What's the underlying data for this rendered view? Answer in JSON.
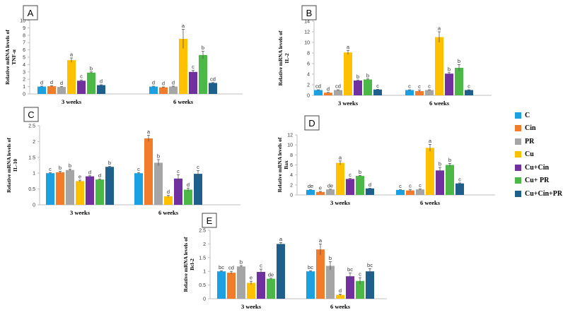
{
  "colors": [
    "#1ba1e2",
    "#f07c2c",
    "#a5a5a5",
    "#ffc000",
    "#7030a0",
    "#4cb848",
    "#1f5f8b"
  ],
  "legend": [
    "C",
    "Cin",
    "PR",
    "Cu",
    "Cu+Cin",
    "Cu+ PR",
    "Cu+Cin+PR"
  ],
  "chart_data": [
    {
      "type": "bar",
      "panel_label": "A",
      "ylabel": "Relative mRNA levels of TNF-α",
      "categories": [
        "3 weeks",
        "6 weeks"
      ],
      "ylim": [
        0,
        10
      ],
      "yticks": [
        0,
        1,
        2,
        3,
        4,
        5,
        6,
        7,
        8,
        9,
        10
      ],
      "series": [
        {
          "name": "C",
          "values": [
            1.0,
            1.0
          ],
          "errors": [
            0.05,
            0.05
          ],
          "letters": [
            "d",
            "d"
          ]
        },
        {
          "name": "Cin",
          "values": [
            1.05,
            0.9
          ],
          "errors": [
            0.05,
            0.05
          ],
          "letters": [
            "d",
            "d"
          ]
        },
        {
          "name": "PR",
          "values": [
            0.95,
            1.0
          ],
          "errors": [
            0.05,
            0.05
          ],
          "letters": [
            "d",
            "d"
          ]
        },
        {
          "name": "Cu",
          "values": [
            4.6,
            7.5
          ],
          "errors": [
            0.3,
            1.3
          ],
          "letters": [
            "a",
            "a"
          ]
        },
        {
          "name": "Cu+Cin",
          "values": [
            1.8,
            3.0
          ],
          "errors": [
            0.1,
            0.2
          ],
          "letters": [
            "c",
            "c"
          ]
        },
        {
          "name": "Cu+ PR",
          "values": [
            2.9,
            5.3
          ],
          "errors": [
            0.1,
            0.5
          ],
          "letters": [
            "b",
            "b"
          ]
        },
        {
          "name": "Cu+Cin+PR",
          "values": [
            1.2,
            1.5
          ],
          "errors": [
            0.05,
            0.05
          ],
          "letters": [
            "d",
            "cd"
          ]
        }
      ]
    },
    {
      "type": "bar",
      "panel_label": "B",
      "ylabel": "Relative mRNA levels of IL-2",
      "categories": [
        "3 weeks",
        "6 weeks"
      ],
      "ylim": [
        0,
        14
      ],
      "yticks": [
        0,
        2,
        4,
        6,
        8,
        10,
        12,
        14
      ],
      "series": [
        {
          "name": "C",
          "values": [
            1.0,
            1.0
          ],
          "errors": [
            0.05,
            0.05
          ],
          "letters": [
            "cd",
            "c"
          ]
        },
        {
          "name": "Cin",
          "values": [
            0.5,
            0.8
          ],
          "errors": [
            0.05,
            0.2
          ],
          "letters": [
            "d",
            "c"
          ]
        },
        {
          "name": "PR",
          "values": [
            1.0,
            1.0
          ],
          "errors": [
            0.05,
            0.05
          ],
          "letters": [
            "cd",
            "c"
          ]
        },
        {
          "name": "Cu",
          "values": [
            8.1,
            11.0
          ],
          "errors": [
            0.4,
            1.0
          ],
          "letters": [
            "a",
            "a"
          ]
        },
        {
          "name": "Cu+Cin",
          "values": [
            2.8,
            4.1
          ],
          "errors": [
            0.1,
            0.2
          ],
          "letters": [
            "b",
            "b"
          ]
        },
        {
          "name": "Cu+ PR",
          "values": [
            3.0,
            5.2
          ],
          "errors": [
            0.1,
            0.6
          ],
          "letters": [
            "b",
            "b"
          ]
        },
        {
          "name": "Cu+Cin+PR",
          "values": [
            1.1,
            1.0
          ],
          "errors": [
            0.05,
            0.05
          ],
          "letters": [
            "c",
            "c"
          ]
        }
      ]
    },
    {
      "type": "bar",
      "panel_label": "C",
      "ylabel": "Relative mRNA levels of IL-10",
      "categories": [
        "3 weeks",
        "6 weeks"
      ],
      "ylim": [
        0,
        2.5
      ],
      "yticks": [
        0,
        0.5,
        1,
        1.5,
        2,
        2.5
      ],
      "series": [
        {
          "name": "C",
          "values": [
            1.0,
            1.0
          ],
          "errors": [
            0.02,
            0.02
          ],
          "letters": [
            "c",
            "c"
          ]
        },
        {
          "name": "Cin",
          "values": [
            1.03,
            2.1
          ],
          "errors": [
            0.03,
            0.1
          ],
          "letters": [
            "b",
            "a"
          ]
        },
        {
          "name": "PR",
          "values": [
            1.1,
            1.33
          ],
          "errors": [
            0.03,
            0.1
          ],
          "letters": [
            "b",
            "b"
          ]
        },
        {
          "name": "Cu",
          "values": [
            0.75,
            0.27
          ],
          "errors": [
            0.03,
            0.03
          ],
          "letters": [
            "e",
            "d"
          ]
        },
        {
          "name": "Cu+Cin",
          "values": [
            0.9,
            0.83
          ],
          "errors": [
            0.02,
            0.12
          ],
          "letters": [
            "d",
            "c"
          ]
        },
        {
          "name": "Cu+ PR",
          "values": [
            0.8,
            0.48
          ],
          "errors": [
            0.02,
            0.05
          ],
          "letters": [
            "d",
            "d"
          ]
        },
        {
          "name": "Cu+Cin+PR",
          "values": [
            1.2,
            0.98
          ],
          "errors": [
            0.02,
            0.1
          ],
          "letters": [
            "b",
            "c"
          ]
        }
      ]
    },
    {
      "type": "bar",
      "panel_label": "D",
      "ylabel": "Relative mRNA levels of Bax",
      "categories": [
        "3 weeks",
        "6 weeks"
      ],
      "ylim": [
        0,
        12
      ],
      "yticks": [
        0,
        2,
        4,
        6,
        8,
        10,
        12
      ],
      "series": [
        {
          "name": "C",
          "values": [
            1.0,
            1.0
          ],
          "errors": [
            0.05,
            0.05
          ],
          "letters": [
            "de",
            "c"
          ]
        },
        {
          "name": "Cin",
          "values": [
            0.6,
            0.9
          ],
          "errors": [
            0.1,
            0.2
          ],
          "letters": [
            "e",
            "c"
          ]
        },
        {
          "name": "PR",
          "values": [
            1.1,
            1.1
          ],
          "errors": [
            0.05,
            0.1
          ],
          "letters": [
            "de",
            "c"
          ]
        },
        {
          "name": "Cu",
          "values": [
            6.4,
            9.4
          ],
          "errors": [
            0.4,
            0.7
          ],
          "letters": [
            "a",
            "a"
          ]
        },
        {
          "name": "Cu+Cin",
          "values": [
            3.2,
            4.9
          ],
          "errors": [
            0.1,
            0.6
          ],
          "letters": [
            "c",
            "b"
          ]
        },
        {
          "name": "Cu+ PR",
          "values": [
            3.8,
            6.0
          ],
          "errors": [
            0.1,
            0.3
          ],
          "letters": [
            "b",
            "b"
          ]
        },
        {
          "name": "Cu+Cin+PR",
          "values": [
            1.3,
            2.3
          ],
          "errors": [
            0.05,
            0.1
          ],
          "letters": [
            "d",
            "c"
          ]
        }
      ]
    },
    {
      "type": "bar",
      "panel_label": "E",
      "ylabel": "Relative mRNA levels of Bcl-2",
      "categories": [
        "3 weeks",
        "6 weeks"
      ],
      "ylim": [
        0,
        2.5
      ],
      "yticks": [
        0,
        0.5,
        1,
        1.5,
        2,
        2.5
      ],
      "series": [
        {
          "name": "C",
          "values": [
            1.0,
            1.0
          ],
          "errors": [
            0.02,
            0.02
          ],
          "letters": [
            "bc",
            "bc"
          ]
        },
        {
          "name": "Cin",
          "values": [
            0.95,
            1.8
          ],
          "errors": [
            0.05,
            0.2
          ],
          "letters": [
            "cd",
            "a"
          ]
        },
        {
          "name": "PR",
          "values": [
            1.18,
            1.2
          ],
          "errors": [
            0.03,
            0.15
          ],
          "letters": [
            "b",
            "b"
          ]
        },
        {
          "name": "Cu",
          "values": [
            0.58,
            0.14
          ],
          "errors": [
            0.06,
            0.03
          ],
          "letters": [
            "e",
            "d"
          ]
        },
        {
          "name": "Cu+Cin",
          "values": [
            0.98,
            0.82
          ],
          "errors": [
            0.1,
            0.12
          ],
          "letters": [
            "c",
            "bc"
          ]
        },
        {
          "name": "Cu+ PR",
          "values": [
            0.73,
            0.65
          ],
          "errors": [
            0.02,
            0.12
          ],
          "letters": [
            "de",
            "c"
          ]
        },
        {
          "name": "Cu+Cin+PR",
          "values": [
            2.0,
            1.0
          ],
          "errors": [
            0.05,
            0.1
          ],
          "letters": [
            "a",
            "bc"
          ]
        }
      ]
    }
  ]
}
